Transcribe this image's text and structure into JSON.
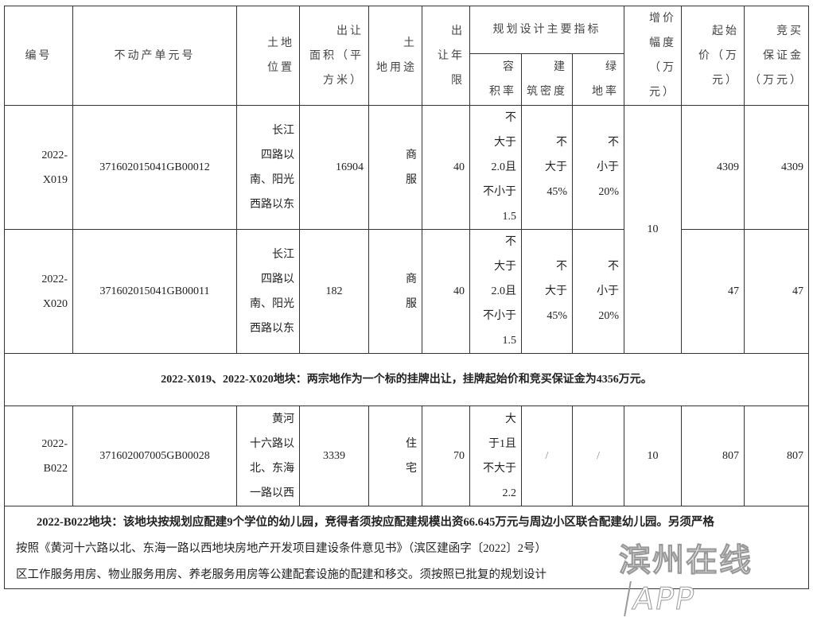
{
  "header": {
    "id": "编号",
    "unit_no": "不动产单元号",
    "location": "土地\n位置",
    "area": "出让\n面积（平\n方米）",
    "use": "土\n地用途",
    "term": "出\n让年限",
    "planning": "规划设计主要指标",
    "far": "容\n积率",
    "density": "建\n筑密度",
    "green": "绿\n地率",
    "increment": "增价\n幅度（万\n元）",
    "start_price": "起始\n价（万\n元）",
    "deposit": "竞买\n保证金\n（万元）"
  },
  "rows": [
    {
      "id": "2022-\nX019",
      "unit_no": "371602015041GB00012",
      "location": "长江\n四路以\n南、阳光\n西路以东",
      "area": "16904",
      "use": "商\n服",
      "term": "40",
      "far": "不\n大于\n2.0且\n不小于\n1.5",
      "density": "不\n大于\n45%",
      "green": "不\n小于\n20%",
      "start_price": "4309",
      "deposit": "4309"
    },
    {
      "id": "2022-\nX020",
      "unit_no": "371602015041GB00011",
      "location": "长江\n四路以\n南、阳光\n西路以东",
      "area": "182",
      "use": "商\n服",
      "term": "40",
      "far": "不\n大于\n2.0且\n不小于\n1.5",
      "density": "不\n大于\n45%",
      "green": "不\n小于\n20%",
      "start_price": "47",
      "deposit": "47"
    },
    {
      "id": "2022-\nB022",
      "unit_no": "371602007005GB00028",
      "location": "黄河\n十六路以\n北、东海\n一路以西",
      "area": "3339",
      "use": "住\n宅",
      "term": "70",
      "far": "大\n于1且\n不大于\n2.2",
      "density": "/",
      "green": "/",
      "increment": "10",
      "start_price": "807",
      "deposit": "807"
    }
  ],
  "shared_increment": "10",
  "note1": "2022-X019、2022-X020地块：两宗地作为一个标的挂牌出让，挂牌起始价和竞买保证金为4356万元。",
  "note2": {
    "line1": "2022-B022地块：该地块按规划应配建9个学位的幼儿园，竞得者须按应配建规模出资66.645万元与周边小区联合配建幼儿园。另须严格",
    "line2": "按照《黄河十六路以北、东海一路以西地块房地产开发项目建设条件意见书》（滨区建函字〔2022〕2号）",
    "line3": "区工作服务用房、物业服务用房、养老服务用房等公建配套设施的配建和移交。须按照已批复的规划设计"
  },
  "watermark": {
    "text": "滨州在线",
    "app": "APP"
  }
}
